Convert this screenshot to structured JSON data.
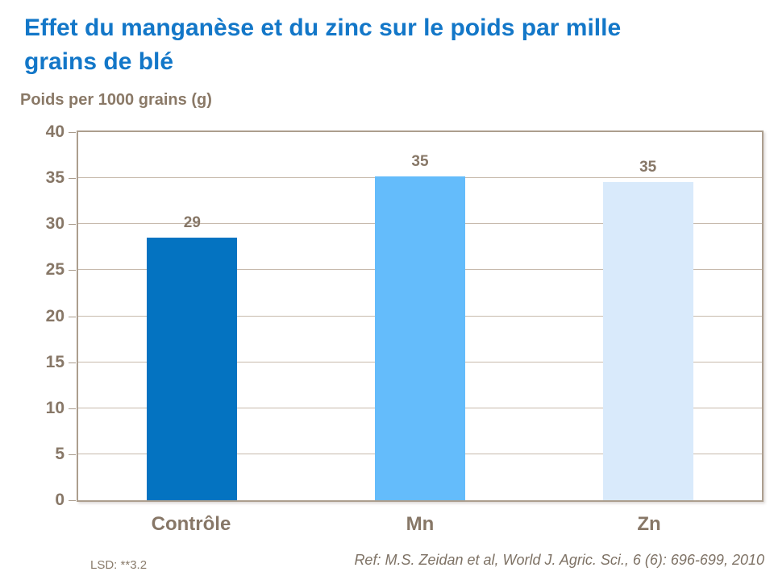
{
  "title": "Effet du manganèse et du zinc sur le poids par mille grains de blé",
  "title_lines": [
    "Effet du manganèse et du zinc sur le poids par mille",
    "grains de blé"
  ],
  "y_axis_title": "Poids per 1000 grains (g)",
  "footnote": "LSD: **3.2",
  "reference": "Ref: M.S. Zeidan et al, World J. Agric. Sci., 6 (6): 696-699, 2010",
  "colors": {
    "title_blue": "#1377C8",
    "text_brown": "#877767",
    "axis_title_brown": "#8A7967",
    "gridline": "#C7BAAC",
    "plot_border": "#AC9E8E",
    "reference_brown": "#7E7265"
  },
  "chart_data": {
    "type": "bar",
    "title": "Effet du manganèse et du zinc sur le poids par mille grains de blé",
    "ylabel": "Poids per 1000 grains (g)",
    "xlabel": "",
    "categories": [
      "Contrôle",
      "Mn",
      "Zn"
    ],
    "values": [
      29,
      35,
      35
    ],
    "data_labels": [
      "29",
      "35",
      "35"
    ],
    "display_values": [
      28.5,
      35.2,
      34.6
    ],
    "bar_colors": [
      "#0473C1",
      "#64BCFB",
      "#D9EAFB"
    ],
    "ylim": [
      0,
      40
    ],
    "yticks": [
      0,
      5,
      10,
      15,
      20,
      25,
      30,
      35,
      40
    ],
    "grid": true,
    "legend": false,
    "annotations": [
      "LSD: **3.2",
      "Ref: M.S. Zeidan et al, World J. Agric. Sci., 6 (6): 696-699, 2010"
    ]
  }
}
